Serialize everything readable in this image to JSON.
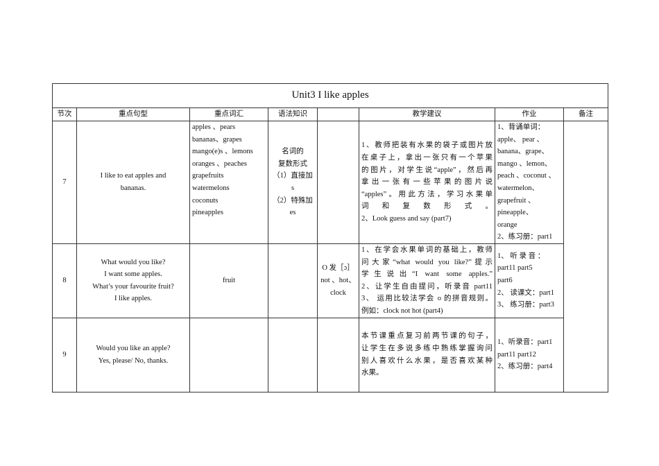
{
  "title": "Unit3 I like apples",
  "headers": [
    "节次",
    "重点句型",
    "重点词汇",
    "语法知识",
    "",
    "教学建议",
    "作业",
    "备注"
  ],
  "rows": [
    {
      "lesson": "7",
      "sentences": [
        "I like to eat apples and",
        "bananas."
      ],
      "vocabulary": [
        "apples 、pears",
        "bananas、grapes",
        "mango(e)s 、lemons",
        "oranges 、peaches",
        "grapefruits",
        "watermelons",
        "coconuts",
        "pineapples"
      ],
      "grammar": [
        "名词的",
        "复数形式",
        "（1）直接加",
        "s",
        "（2）特殊加",
        "es"
      ],
      "phonics": [],
      "suggestions": [
        "1、教师把装有水果的袋子或图片放",
        "在桌子上，拿出一张只有一个苹果",
        "的图片，对学生说“apple”，然后再",
        "拿出一张有一些苹果的图片说",
        "“apples”。用此方法，学习水果单",
        "词和复数形式。",
        "2、Look guess and say (part7)"
      ],
      "homework": [
        "1、背诵单词：",
        "apple、 pear 、",
        "banana、grape、",
        "mango 、lemon、",
        "peach 、coconut 、",
        "watermelon、",
        "grapefruit 、",
        "pineapple、",
        "orange",
        "2、练习册：part1"
      ]
    },
    {
      "lesson": "8",
      "sentences": [
        "What would you like?",
        "I want some apples.",
        "What’s your favourite fruit?",
        "I like apples."
      ],
      "vocabulary": [
        "fruit"
      ],
      "grammar": [],
      "phonics": [
        "O 发［ɔ］",
        "not 、hot、",
        "clock"
      ],
      "suggestions": [
        "1、在学会水果单词的基础上，教师",
        "问大家“what would you like?”提示",
        "学生说出“I want some apples.”",
        "2、让学生自由提问，听录音 part11",
        "3、 运用比较法学会 o 的拼音规则。",
        "例如：clock not hot (part4)"
      ],
      "homework": [
        "1、 听 录 音 ：",
        "part11 part5",
        "part6",
        "2、 读课文：part1",
        "3、 练习册：part3"
      ]
    },
    {
      "lesson": "9",
      "sentences": [
        "Would you like an apple?",
        "Yes, please/ No, thanks."
      ],
      "vocabulary": [],
      "grammar": [],
      "phonics": [],
      "suggestions": [
        "本节课重点复习前两节课的句子，",
        "让学生在多说多练中熟练掌握询问",
        "别人喜欢什么水果，是否喜欢某种",
        "水果。"
      ],
      "homework": [
        "1、听录音：part1",
        "part11 part12",
        "2、练习册：part4"
      ]
    }
  ],
  "remarks": ""
}
